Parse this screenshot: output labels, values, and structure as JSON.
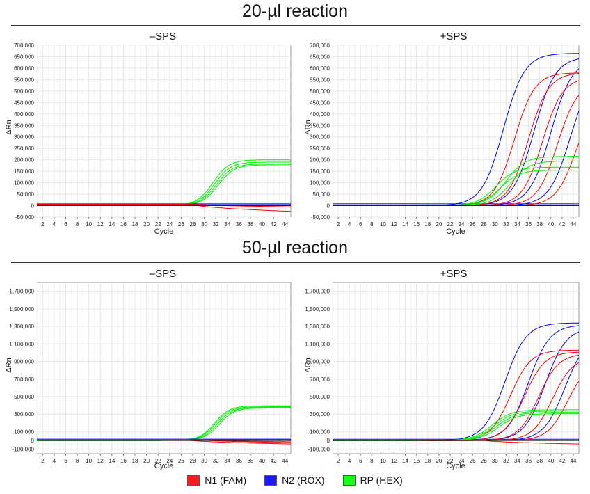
{
  "sections": [
    {
      "title": "20-µl reaction"
    },
    {
      "title": "50-µl reaction"
    }
  ],
  "colors": {
    "N1": "#ff0000",
    "N2": "#0000ff",
    "RP": "#00ee00"
  },
  "legend": [
    {
      "label": "N1 (FAM)",
      "color": "#ff1a1a"
    },
    {
      "label": "N2 (ROX)",
      "color": "#1a1aff"
    },
    {
      "label": "RP (HEX)",
      "color": "#1aff1a"
    }
  ],
  "chart_data": [
    {
      "type": "line",
      "section": "20-µl reaction",
      "title": "–SPS",
      "xlabel": "Cycle",
      "ylabel": "ΔRn",
      "xlim": [
        1,
        45
      ],
      "ylim": [
        -50000,
        700000
      ],
      "xticks": [
        "2",
        "4",
        "6",
        "8",
        "10",
        "12",
        "14",
        "16",
        "18",
        "20",
        "22",
        "24",
        "26",
        "28",
        "30",
        "32",
        "34",
        "36",
        "38",
        "40",
        "42",
        "44"
      ],
      "yticks": [
        "-50,000",
        "0",
        "50,000",
        "100,000",
        "150,000",
        "200,000",
        "250,000",
        "300,000",
        "350,000",
        "400,000",
        "450,000",
        "500,000",
        "550,000",
        "600,000",
        "650,000",
        "700,000"
      ],
      "grid": true,
      "series": [
        {
          "dye": "RP",
          "curve": "sigmoid",
          "plateau": 200000,
          "midpoint": 31.5,
          "slope": 1.4
        },
        {
          "dye": "RP",
          "curve": "sigmoid",
          "plateau": 190000,
          "midpoint": 31.8,
          "slope": 1.4
        },
        {
          "dye": "RP",
          "curve": "sigmoid",
          "plateau": 182000,
          "midpoint": 32.1,
          "slope": 1.4
        },
        {
          "dye": "RP",
          "curve": "sigmoid",
          "plateau": 178000,
          "midpoint": 32.4,
          "slope": 1.4
        },
        {
          "dye": "N2",
          "curve": "flat",
          "value": 8000
        },
        {
          "dye": "N2",
          "curve": "flat",
          "value": 4000
        },
        {
          "dye": "N1",
          "curve": "drift",
          "start": 8000,
          "end": -25000,
          "from": 28
        },
        {
          "dye": "N1",
          "curve": "drift",
          "start": 5000,
          "end": -5000,
          "from": 30
        },
        {
          "dye": "N1",
          "curve": "flat",
          "value": 2000
        }
      ]
    },
    {
      "type": "line",
      "section": "20-µl reaction",
      "title": "+SPS",
      "xlabel": "Cycle",
      "ylabel": "ΔRn",
      "xlim": [
        1,
        45
      ],
      "ylim": [
        -50000,
        700000
      ],
      "xticks": [
        "2",
        "4",
        "6",
        "8",
        "10",
        "12",
        "14",
        "16",
        "18",
        "20",
        "22",
        "24",
        "26",
        "28",
        "30",
        "32",
        "34",
        "36",
        "38",
        "40",
        "42",
        "44"
      ],
      "yticks": [
        "-50,000",
        "0",
        "50,000",
        "100,000",
        "150,000",
        "200,000",
        "250,000",
        "300,000",
        "350,000",
        "400,000",
        "450,000",
        "500,000",
        "550,000",
        "600,000",
        "650,000",
        "700,000"
      ],
      "grid": true,
      "series": [
        {
          "dye": "N2",
          "curve": "sigmoid",
          "plateau": 665000,
          "midpoint": 31.5,
          "slope": 1.9
        },
        {
          "dye": "N2",
          "curve": "sigmoid",
          "plateau": 650000,
          "midpoint": 37.0,
          "slope": 1.9
        },
        {
          "dye": "N2",
          "curve": "sigmoid",
          "plateau": 640000,
          "midpoint": 40.0,
          "slope": 1.9
        },
        {
          "dye": "N2",
          "curve": "sigmoid",
          "plateau": 600000,
          "midpoint": 43.5,
          "slope": 1.9
        },
        {
          "dye": "N2",
          "curve": "flat",
          "value": 8000
        },
        {
          "dye": "N1",
          "curve": "sigmoid",
          "plateau": 580000,
          "midpoint": 33.5,
          "slope": 1.8
        },
        {
          "dye": "N1",
          "curve": "sigmoid",
          "plateau": 580000,
          "midpoint": 36.0,
          "slope": 1.8
        },
        {
          "dye": "N1",
          "curve": "sigmoid",
          "plateau": 560000,
          "midpoint": 38.5,
          "slope": 1.8
        },
        {
          "dye": "N1",
          "curve": "sigmoid",
          "plateau": 540000,
          "midpoint": 41.2,
          "slope": 1.8
        },
        {
          "dye": "N1",
          "curve": "sigmoid",
          "plateau": 480000,
          "midpoint": 44.5,
          "slope": 1.8
        },
        {
          "dye": "RP",
          "curve": "sigmoid",
          "plateau": 215000,
          "midpoint": 32.0,
          "slope": 1.7
        },
        {
          "dye": "RP",
          "curve": "sigmoid",
          "plateau": 195000,
          "midpoint": 32.8,
          "slope": 1.7
        },
        {
          "dye": "RP",
          "curve": "sigmoid",
          "plateau": 168000,
          "midpoint": 30.2,
          "slope": 1.7
        },
        {
          "dye": "RP",
          "curve": "sigmoid",
          "plateau": 155000,
          "midpoint": 31.0,
          "slope": 1.7
        }
      ]
    },
    {
      "type": "line",
      "section": "50-µl reaction",
      "title": "–SPS",
      "xlabel": "Cycle",
      "ylabel": "ΔRn",
      "xlim": [
        1,
        45
      ],
      "ylim": [
        -150000,
        1800000
      ],
      "xticks": [
        "2",
        "4",
        "6",
        "8",
        "10",
        "12",
        "14",
        "16",
        "18",
        "20",
        "22",
        "24",
        "26",
        "28",
        "30",
        "32",
        "34",
        "36",
        "38",
        "40",
        "42",
        "44"
      ],
      "yticks": [
        "-100,000",
        "0",
        "100,000",
        "300,000",
        "500,000",
        "700,000",
        "900,000",
        "1,100,000",
        "1,300,000",
        "1,500,000",
        "1,700,000"
      ],
      "grid": true,
      "series": [
        {
          "dye": "RP",
          "curve": "sigmoid",
          "plateau": 395000,
          "midpoint": 31.8,
          "slope": 1.3
        },
        {
          "dye": "RP",
          "curve": "sigmoid",
          "plateau": 385000,
          "midpoint": 32.0,
          "slope": 1.3
        },
        {
          "dye": "RP",
          "curve": "sigmoid",
          "plateau": 378000,
          "midpoint": 32.3,
          "slope": 1.3
        },
        {
          "dye": "RP",
          "curve": "sigmoid",
          "plateau": 370000,
          "midpoint": 32.6,
          "slope": 1.3
        },
        {
          "dye": "N2",
          "curve": "flat",
          "value": 25000
        },
        {
          "dye": "N2",
          "curve": "flat",
          "value": 12000
        },
        {
          "dye": "N1",
          "curve": "drift",
          "start": 10000,
          "end": -40000,
          "from": 27
        },
        {
          "dye": "N1",
          "curve": "drift",
          "start": 8000,
          "end": -25000,
          "from": 30
        },
        {
          "dye": "N1",
          "curve": "drift",
          "start": 5000,
          "end": -15000,
          "from": 32
        }
      ]
    },
    {
      "type": "line",
      "section": "50-µl reaction",
      "title": "+SPS",
      "xlabel": "Cycle",
      "ylabel": "ΔRn",
      "xlim": [
        1,
        45
      ],
      "ylim": [
        -150000,
        1800000
      ],
      "xticks": [
        "2",
        "4",
        "6",
        "8",
        "10",
        "12",
        "14",
        "16",
        "18",
        "20",
        "22",
        "24",
        "26",
        "28",
        "30",
        "32",
        "34",
        "36",
        "38",
        "40",
        "42",
        "44"
      ],
      "yticks": [
        "-100,000",
        "0",
        "100,000",
        "300,000",
        "500,000",
        "700,000",
        "900,000",
        "1,100,000",
        "1,300,000",
        "1,500,000",
        "1,700,000"
      ],
      "grid": true,
      "series": [
        {
          "dye": "N2",
          "curve": "sigmoid",
          "plateau": 1340000,
          "midpoint": 31.8,
          "slope": 1.9
        },
        {
          "dye": "N2",
          "curve": "sigmoid",
          "plateau": 1320000,
          "midpoint": 36.0,
          "slope": 1.9
        },
        {
          "dye": "N2",
          "curve": "sigmoid",
          "plateau": 1290000,
          "midpoint": 39.0,
          "slope": 1.9
        },
        {
          "dye": "N2",
          "curve": "sigmoid",
          "plateau": 1200000,
          "midpoint": 42.5,
          "slope": 1.9
        },
        {
          "dye": "N2",
          "curve": "flat",
          "value": 15000
        },
        {
          "dye": "N1",
          "curve": "sigmoid",
          "plateau": 1030000,
          "midpoint": 32.8,
          "slope": 1.8
        },
        {
          "dye": "N1",
          "curve": "sigmoid",
          "plateau": 1010000,
          "midpoint": 35.3,
          "slope": 1.8
        },
        {
          "dye": "N1",
          "curve": "sigmoid",
          "plateau": 990000,
          "midpoint": 37.8,
          "slope": 1.8
        },
        {
          "dye": "N1",
          "curve": "sigmoid",
          "plateau": 950000,
          "midpoint": 40.3,
          "slope": 1.8
        },
        {
          "dye": "N1",
          "curve": "sigmoid",
          "plateau": 900000,
          "midpoint": 43.0,
          "slope": 1.8
        },
        {
          "dye": "N1",
          "curve": "drift",
          "start": 5000,
          "end": -40000,
          "from": 28
        },
        {
          "dye": "RP",
          "curve": "sigmoid",
          "plateau": 350000,
          "midpoint": 29.5,
          "slope": 1.7
        },
        {
          "dye": "RP",
          "curve": "sigmoid",
          "plateau": 335000,
          "midpoint": 29.9,
          "slope": 1.7
        },
        {
          "dye": "RP",
          "curve": "sigmoid",
          "plateau": 320000,
          "midpoint": 30.3,
          "slope": 1.7
        },
        {
          "dye": "RP",
          "curve": "sigmoid",
          "plateau": 305000,
          "midpoint": 30.7,
          "slope": 1.7
        }
      ]
    }
  ]
}
